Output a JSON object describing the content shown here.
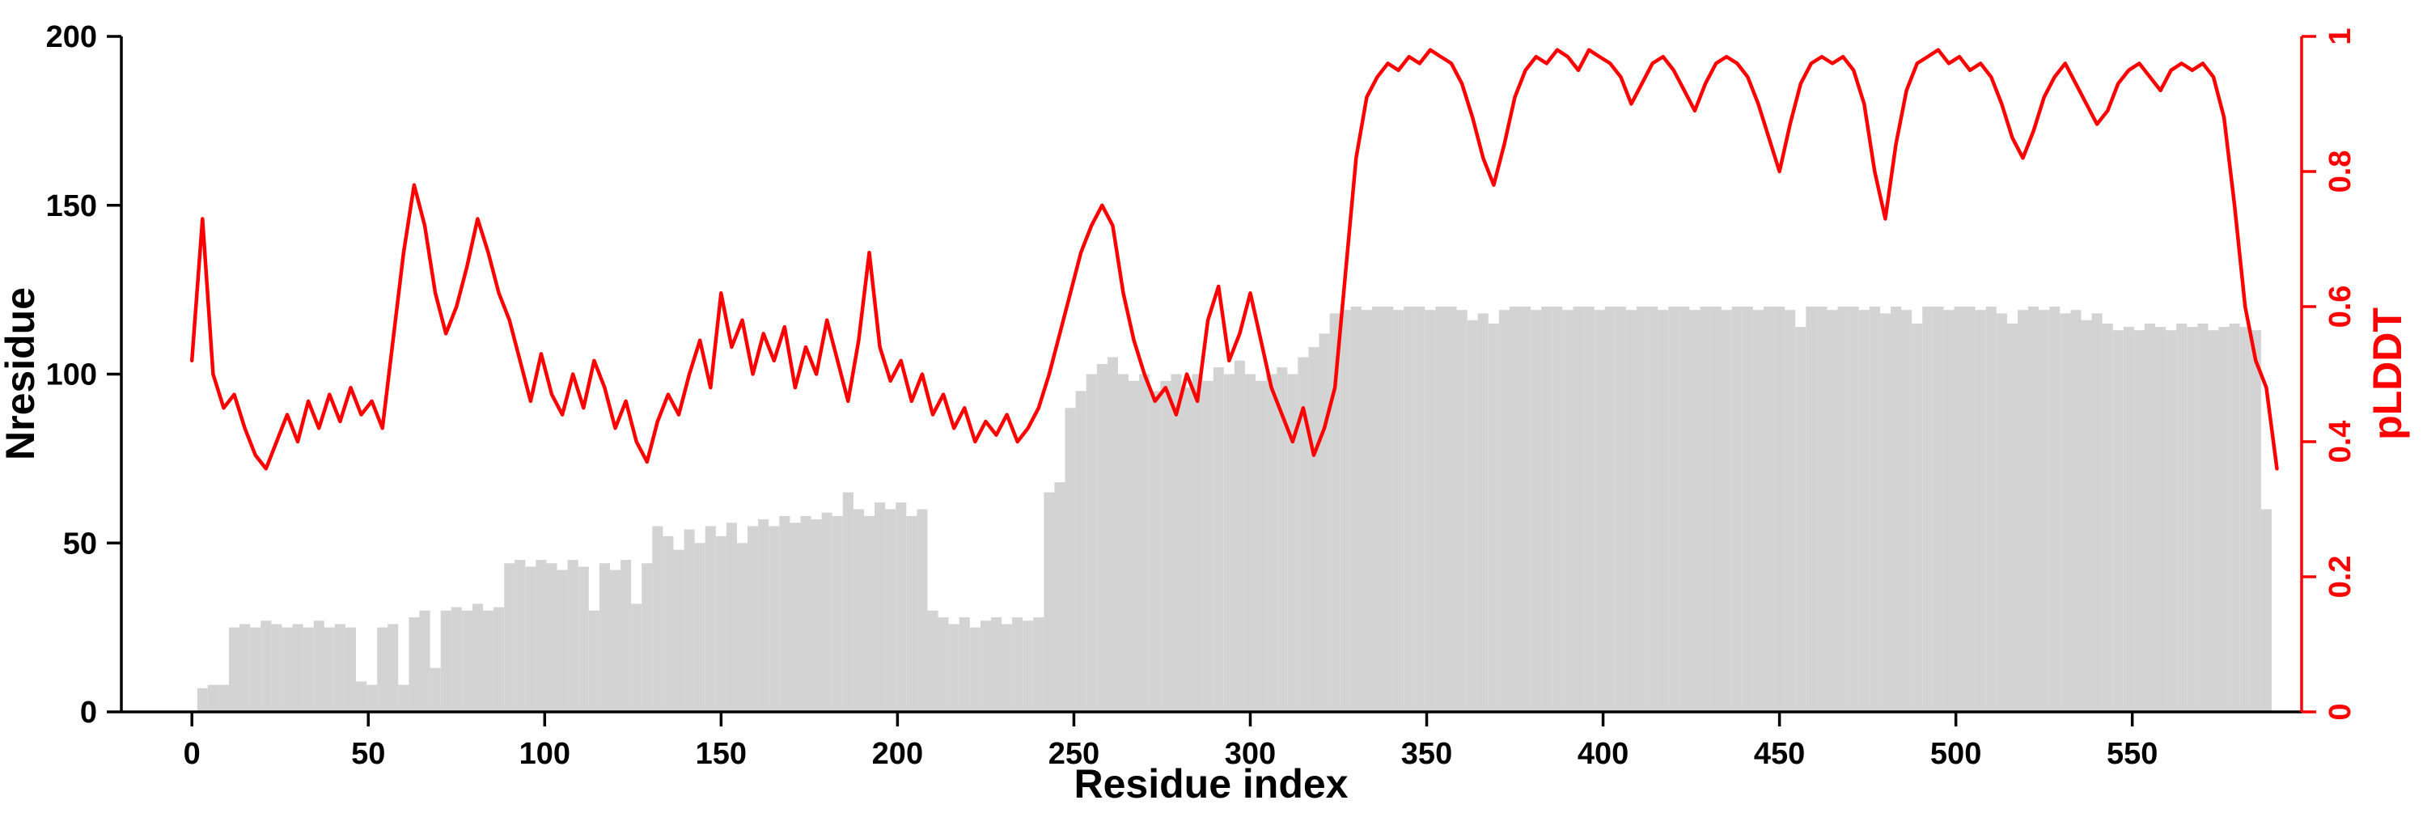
{
  "figure": {
    "background": "#ffffff"
  },
  "chart_data": {
    "type": "bar+line",
    "title": "",
    "xlabel": "Residue index",
    "ylabel_left": "Nresidue",
    "ylabel_right": "pLDDT",
    "x_range": [
      -20,
      598
    ],
    "y_left_range": [
      0,
      200
    ],
    "y_right_range": [
      0,
      1
    ],
    "x_ticks": [
      0,
      50,
      100,
      150,
      200,
      250,
      300,
      350,
      400,
      450,
      500,
      550
    ],
    "y_left_ticks": [
      0,
      50,
      100,
      150,
      200
    ],
    "y_right_ticks": [
      0,
      0.2,
      0.4,
      0.6,
      0.8,
      1
    ],
    "y_right_tick_labels": [
      "0",
      "0.2",
      "0.4",
      "0.6",
      "0.8",
      "1"
    ],
    "legend": "none",
    "grid": false,
    "colors": {
      "bars": "#d3d3d3",
      "line": "#ff0000",
      "axis": "#000000"
    },
    "x": [
      0,
      3,
      6,
      9,
      12,
      15,
      18,
      21,
      24,
      27,
      30,
      33,
      36,
      39,
      42,
      45,
      48,
      51,
      54,
      57,
      60,
      63,
      66,
      69,
      72,
      75,
      78,
      81,
      84,
      87,
      90,
      93,
      96,
      99,
      102,
      105,
      108,
      111,
      114,
      117,
      120,
      123,
      126,
      129,
      132,
      135,
      138,
      141,
      144,
      147,
      150,
      153,
      156,
      159,
      162,
      165,
      168,
      171,
      174,
      177,
      180,
      183,
      186,
      189,
      192,
      195,
      198,
      201,
      204,
      207,
      210,
      213,
      216,
      219,
      222,
      225,
      228,
      231,
      234,
      237,
      240,
      243,
      246,
      249,
      252,
      255,
      258,
      261,
      264,
      267,
      270,
      273,
      276,
      279,
      282,
      285,
      288,
      291,
      294,
      297,
      300,
      303,
      306,
      309,
      312,
      315,
      318,
      321,
      324,
      327,
      330,
      333,
      336,
      339,
      342,
      345,
      348,
      351,
      354,
      357,
      360,
      363,
      366,
      369,
      372,
      375,
      378,
      381,
      384,
      387,
      390,
      393,
      396,
      399,
      402,
      405,
      408,
      411,
      414,
      417,
      420,
      423,
      426,
      429,
      432,
      435,
      438,
      441,
      444,
      447,
      450,
      453,
      456,
      459,
      462,
      465,
      468,
      471,
      474,
      477,
      480,
      483,
      486,
      489,
      492,
      495,
      498,
      501,
      504,
      507,
      510,
      513,
      516,
      519,
      522,
      525,
      528,
      531,
      534,
      537,
      540,
      543,
      546,
      549,
      552,
      555,
      558,
      561,
      564,
      567,
      570,
      573,
      576,
      579,
      582,
      585,
      588,
      591
    ],
    "series": [
      {
        "name": "Nresidue",
        "type": "bar",
        "axis": "left",
        "color": "#d3d3d3",
        "values": [
          0,
          7,
          8,
          8,
          25,
          26,
          25,
          27,
          26,
          25,
          26,
          25,
          27,
          25,
          26,
          25,
          9,
          8,
          25,
          26,
          8,
          28,
          30,
          13,
          30,
          31,
          30,
          32,
          30,
          31,
          44,
          45,
          43,
          45,
          44,
          42,
          45,
          43,
          30,
          44,
          42,
          45,
          32,
          44,
          55,
          52,
          48,
          54,
          50,
          55,
          52,
          56,
          50,
          55,
          57,
          55,
          58,
          56,
          58,
          57,
          59,
          58,
          65,
          60,
          58,
          62,
          60,
          62,
          58,
          60,
          30,
          28,
          26,
          28,
          25,
          27,
          28,
          26,
          28,
          27,
          28,
          65,
          68,
          90,
          95,
          100,
          103,
          105,
          100,
          98,
          100,
          95,
          98,
          100,
          96,
          100,
          98,
          102,
          100,
          104,
          100,
          98,
          100,
          102,
          100,
          105,
          108,
          112,
          118,
          119,
          120,
          119,
          120,
          120,
          119,
          120,
          120,
          119,
          120,
          120,
          119,
          116,
          118,
          115,
          119,
          120,
          120,
          119,
          120,
          120,
          119,
          120,
          120,
          119,
          120,
          120,
          119,
          120,
          120,
          119,
          120,
          120,
          119,
          120,
          120,
          119,
          120,
          120,
          119,
          120,
          120,
          119,
          114,
          120,
          120,
          119,
          120,
          120,
          119,
          120,
          118,
          120,
          119,
          115,
          120,
          120,
          119,
          120,
          120,
          119,
          120,
          118,
          115,
          119,
          120,
          119,
          120,
          118,
          119,
          116,
          118,
          115,
          113,
          114,
          113,
          115,
          114,
          113,
          115,
          114,
          115,
          113,
          114,
          115,
          114,
          113,
          60,
          0
        ]
      },
      {
        "name": "pLDDT",
        "type": "line",
        "axis": "right",
        "color": "#ff0000",
        "values": [
          0.52,
          0.73,
          0.5,
          0.45,
          0.47,
          0.42,
          0.38,
          0.36,
          0.4,
          0.44,
          0.4,
          0.46,
          0.42,
          0.47,
          0.43,
          0.48,
          0.44,
          0.46,
          0.42,
          0.55,
          0.68,
          0.78,
          0.72,
          0.62,
          0.56,
          0.6,
          0.66,
          0.73,
          0.68,
          0.62,
          0.58,
          0.52,
          0.46,
          0.53,
          0.47,
          0.44,
          0.5,
          0.45,
          0.52,
          0.48,
          0.42,
          0.46,
          0.4,
          0.37,
          0.43,
          0.47,
          0.44,
          0.5,
          0.55,
          0.48,
          0.62,
          0.54,
          0.58,
          0.5,
          0.56,
          0.52,
          0.57,
          0.48,
          0.54,
          0.5,
          0.58,
          0.52,
          0.46,
          0.55,
          0.68,
          0.54,
          0.49,
          0.52,
          0.46,
          0.5,
          0.44,
          0.47,
          0.42,
          0.45,
          0.4,
          0.43,
          0.41,
          0.44,
          0.4,
          0.42,
          0.45,
          0.5,
          0.56,
          0.62,
          0.68,
          0.72,
          0.75,
          0.72,
          0.62,
          0.55,
          0.5,
          0.46,
          0.48,
          0.44,
          0.5,
          0.46,
          0.58,
          0.63,
          0.52,
          0.56,
          0.62,
          0.55,
          0.48,
          0.44,
          0.4,
          0.45,
          0.38,
          0.42,
          0.48,
          0.65,
          0.82,
          0.91,
          0.94,
          0.96,
          0.95,
          0.97,
          0.96,
          0.98,
          0.97,
          0.96,
          0.93,
          0.88,
          0.82,
          0.78,
          0.84,
          0.91,
          0.95,
          0.97,
          0.96,
          0.98,
          0.97,
          0.95,
          0.98,
          0.97,
          0.96,
          0.94,
          0.9,
          0.93,
          0.96,
          0.97,
          0.95,
          0.92,
          0.89,
          0.93,
          0.96,
          0.97,
          0.96,
          0.94,
          0.9,
          0.85,
          0.8,
          0.87,
          0.93,
          0.96,
          0.97,
          0.96,
          0.97,
          0.95,
          0.9,
          0.8,
          0.73,
          0.84,
          0.92,
          0.96,
          0.97,
          0.98,
          0.96,
          0.97,
          0.95,
          0.96,
          0.94,
          0.9,
          0.85,
          0.82,
          0.86,
          0.91,
          0.94,
          0.96,
          0.93,
          0.9,
          0.87,
          0.89,
          0.93,
          0.95,
          0.96,
          0.94,
          0.92,
          0.95,
          0.96,
          0.95,
          0.96,
          0.94,
          0.88,
          0.75,
          0.6,
          0.52,
          0.48,
          0.36
        ]
      }
    ]
  }
}
